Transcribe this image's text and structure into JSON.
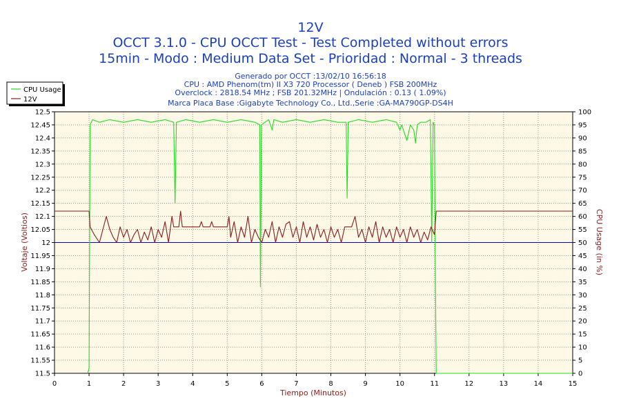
{
  "chart_data": {
    "type": "line",
    "title_lines": [
      "12V",
      "OCCT 3.1.0 - CPU OCCT Test - Test Completed without errors",
      "15min - Modo : Medium Data Set - Prioridad : Normal - 3 threads"
    ],
    "info_lines": [
      "Generado por OCCT :13/02/10 16:56:18",
      "CPU : AMD Phenom(tm) II X3 720 Processor ( Deneb ) FSB 200MHz",
      "Overclock : 2818.54 MHz ; FSB 201.32MHz | Ondulación : 0.13 ( 1.09%)",
      "Marca Placa Base :Gigabyte Technology Co., Ltd.,Serie :GA-MA790GP-DS4H"
    ],
    "xlabel": "Tiempo (Minutos)",
    "ylabel_left": "Voltaje (Voltios)",
    "ylabel_right": "CPU Usage (in %)",
    "xlim": [
      0,
      15
    ],
    "ylim_left": [
      11.5,
      12.5
    ],
    "ylim_right": [
      0,
      100
    ],
    "x_ticks": [
      0,
      1,
      2,
      3,
      4,
      5,
      6,
      7,
      8,
      9,
      10,
      11,
      12,
      13,
      14,
      15
    ],
    "y_ticks_left": [
      "11.5",
      "11.55",
      "11.6",
      "11.65",
      "11.7",
      "11.75",
      "11.8",
      "11.85",
      "11.9",
      "11.95",
      "12",
      "12.05",
      "12.1",
      "12.15",
      "12.2",
      "12.25",
      "12.3",
      "12.35",
      "12.4",
      "12.45",
      "12.5"
    ],
    "y_ticks_right": [
      "0",
      "5",
      "10",
      "15",
      "20",
      "25",
      "30",
      "35",
      "40",
      "45",
      "50",
      "55",
      "60",
      "65",
      "70",
      "75",
      "80",
      "85",
      "90",
      "95",
      "100"
    ],
    "grid": true,
    "legend_position": "top-left",
    "reference_line": {
      "value": 12.0,
      "color": "#0000cc"
    },
    "series": [
      {
        "name": "CPU Usage",
        "axis": "right",
        "color": "#22dd22",
        "points": [
          [
            0.96,
            0
          ],
          [
            1.0,
            2
          ],
          [
            1.03,
            95
          ],
          [
            1.1,
            97
          ],
          [
            1.3,
            96
          ],
          [
            1.6,
            97
          ],
          [
            2.0,
            96
          ],
          [
            2.4,
            97
          ],
          [
            2.8,
            96
          ],
          [
            3.2,
            97
          ],
          [
            3.45,
            96
          ],
          [
            3.49,
            65
          ],
          [
            3.53,
            96
          ],
          [
            3.8,
            97
          ],
          [
            4.2,
            96
          ],
          [
            4.6,
            97
          ],
          [
            5.0,
            96
          ],
          [
            5.4,
            97
          ],
          [
            5.8,
            96
          ],
          [
            5.94,
            95
          ],
          [
            5.96,
            33
          ],
          [
            5.99,
            95
          ],
          [
            6.2,
            97
          ],
          [
            6.3,
            93
          ],
          [
            6.35,
            97
          ],
          [
            6.6,
            96
          ],
          [
            7.0,
            97
          ],
          [
            7.4,
            96
          ],
          [
            7.8,
            97
          ],
          [
            8.2,
            96
          ],
          [
            8.44,
            96
          ],
          [
            8.47,
            67
          ],
          [
            8.5,
            96
          ],
          [
            8.8,
            97
          ],
          [
            9.2,
            96
          ],
          [
            9.6,
            97
          ],
          [
            9.9,
            96
          ],
          [
            10.0,
            93
          ],
          [
            10.05,
            95
          ],
          [
            10.15,
            91
          ],
          [
            10.2,
            89
          ],
          [
            10.3,
            95
          ],
          [
            10.4,
            93
          ],
          [
            10.45,
            88
          ],
          [
            10.5,
            95
          ],
          [
            10.6,
            96
          ],
          [
            10.75,
            96
          ],
          [
            10.88,
            97
          ],
          [
            10.92,
            50
          ],
          [
            10.96,
            96
          ],
          [
            11.0,
            95
          ],
          [
            11.02,
            50
          ],
          [
            11.05,
            0
          ],
          [
            15.0,
            0
          ]
        ]
      },
      {
        "name": "12V",
        "axis": "left",
        "color": "#8b1a1a",
        "points": [
          [
            0,
            12.12
          ],
          [
            1.0,
            12.12
          ],
          [
            1.03,
            12.06
          ],
          [
            1.15,
            12.03
          ],
          [
            1.3,
            12.0
          ],
          [
            1.4,
            12.05
          ],
          [
            1.5,
            12.1
          ],
          [
            1.6,
            12.05
          ],
          [
            1.7,
            12.02
          ],
          [
            1.8,
            12.0
          ],
          [
            1.9,
            12.06
          ],
          [
            2.0,
            12.02
          ],
          [
            2.1,
            12.05
          ],
          [
            2.2,
            12.0
          ],
          [
            2.3,
            12.03
          ],
          [
            2.4,
            12.05
          ],
          [
            2.5,
            12.0
          ],
          [
            2.6,
            12.04
          ],
          [
            2.7,
            12.01
          ],
          [
            2.8,
            12.06
          ],
          [
            2.9,
            12.0
          ],
          [
            3.0,
            12.05
          ],
          [
            3.1,
            12.02
          ],
          [
            3.2,
            12.08
          ],
          [
            3.3,
            12.0
          ],
          [
            3.4,
            12.1
          ],
          [
            3.45,
            12.06
          ],
          [
            3.6,
            12.06
          ],
          [
            3.65,
            12.12
          ],
          [
            3.7,
            12.06
          ],
          [
            4.2,
            12.06
          ],
          [
            4.25,
            12.08
          ],
          [
            4.3,
            12.06
          ],
          [
            4.5,
            12.06
          ],
          [
            4.55,
            12.08
          ],
          [
            4.6,
            12.06
          ],
          [
            5.0,
            12.06
          ],
          [
            5.05,
            12.1
          ],
          [
            5.1,
            12.02
          ],
          [
            5.2,
            12.08
          ],
          [
            5.3,
            12.0
          ],
          [
            5.4,
            12.06
          ],
          [
            5.5,
            12.02
          ],
          [
            5.6,
            12.1
          ],
          [
            5.7,
            12.0
          ],
          [
            5.8,
            12.05
          ],
          [
            5.9,
            12.02
          ],
          [
            6.0,
            12.0
          ],
          [
            6.1,
            12.05
          ],
          [
            6.2,
            12.02
          ],
          [
            6.3,
            12.08
          ],
          [
            6.4,
            12.0
          ],
          [
            6.5,
            12.06
          ],
          [
            6.6,
            12.02
          ],
          [
            6.7,
            12.07
          ],
          [
            6.8,
            12.08
          ],
          [
            6.9,
            12.02
          ],
          [
            7.0,
            12.06
          ],
          [
            7.1,
            12.0
          ],
          [
            7.2,
            12.08
          ],
          [
            7.3,
            12.02
          ],
          [
            7.4,
            12.06
          ],
          [
            7.5,
            12.01
          ],
          [
            7.6,
            12.07
          ],
          [
            7.7,
            12.02
          ],
          [
            7.8,
            12.05
          ],
          [
            7.9,
            12.0
          ],
          [
            8.0,
            12.06
          ],
          [
            8.1,
            12.02
          ],
          [
            8.2,
            12.05
          ],
          [
            8.3,
            12.0
          ],
          [
            8.4,
            12.06
          ],
          [
            8.5,
            12.06
          ],
          [
            8.6,
            12.06
          ],
          [
            8.7,
            12.1
          ],
          [
            8.8,
            12.02
          ],
          [
            8.9,
            12.05
          ],
          [
            9.0,
            12.0
          ],
          [
            9.1,
            12.06
          ],
          [
            9.2,
            12.02
          ],
          [
            9.3,
            12.08
          ],
          [
            9.4,
            12.0
          ],
          [
            9.5,
            12.06
          ],
          [
            9.6,
            12.02
          ],
          [
            9.7,
            12.05
          ],
          [
            9.8,
            12.0
          ],
          [
            9.9,
            12.06
          ],
          [
            10.0,
            12.02
          ],
          [
            10.1,
            12.05
          ],
          [
            10.2,
            12.0
          ],
          [
            10.3,
            12.06
          ],
          [
            10.4,
            12.02
          ],
          [
            10.5,
            12.05
          ],
          [
            10.6,
            12.0
          ],
          [
            10.7,
            12.04
          ],
          [
            10.8,
            12.01
          ],
          [
            10.9,
            12.06
          ],
          [
            11.0,
            12.03
          ],
          [
            11.05,
            12.12
          ],
          [
            15.0,
            12.12
          ]
        ]
      }
    ]
  }
}
